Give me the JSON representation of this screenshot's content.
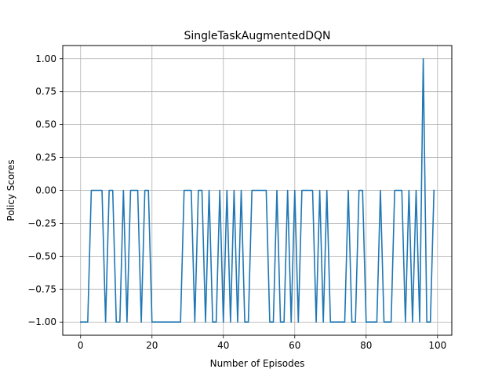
{
  "chart_data": {
    "type": "line",
    "title": "SingleTaskAugmentedDQN",
    "xlabel": "Number of Episodes",
    "ylabel": "Policy Scores",
    "xlim": [
      -5,
      104
    ],
    "ylim": [
      -1.1,
      1.1
    ],
    "grid": true,
    "x_ticks": [
      0,
      20,
      40,
      60,
      80,
      100
    ],
    "x_tick_labels": [
      "0",
      "20",
      "40",
      "60",
      "80",
      "100"
    ],
    "y_ticks": [
      -1.0,
      -0.75,
      -0.5,
      -0.25,
      0.0,
      0.25,
      0.5,
      0.75,
      1.0
    ],
    "y_tick_labels": [
      "−1.00",
      "−0.75",
      "−0.50",
      "−0.25",
      "0.00",
      "0.25",
      "0.50",
      "0.75",
      "1.00"
    ],
    "series_color": "#1f77b4",
    "series": [
      {
        "x": [
          0,
          1,
          2,
          3,
          4,
          5,
          6,
          7,
          8,
          9,
          10,
          11,
          12,
          13,
          14,
          15,
          16,
          17,
          18,
          19,
          20,
          21,
          22,
          23,
          24,
          25,
          26,
          27,
          28,
          29,
          30,
          31,
          32,
          33,
          34,
          35,
          36,
          37,
          38,
          39,
          40,
          41,
          42,
          43,
          44,
          45,
          46,
          47,
          48,
          49,
          50,
          51,
          52,
          53,
          54,
          55,
          56,
          57,
          58,
          59,
          60,
          61,
          62,
          63,
          64,
          65,
          66,
          67,
          68,
          69,
          70,
          71,
          72,
          73,
          74,
          75,
          76,
          77,
          78,
          79,
          80,
          81,
          82,
          83,
          84,
          85,
          86,
          87,
          88,
          89,
          90,
          91,
          92,
          93,
          94,
          95,
          96,
          97,
          98,
          99
        ],
        "values": [
          -1,
          -1,
          -1,
          0,
          0,
          0,
          0,
          -1,
          0,
          0,
          -1,
          -1,
          0,
          -1,
          0,
          0,
          0,
          -1,
          0,
          0,
          -1,
          -1,
          -1,
          -1,
          -1,
          -1,
          -1,
          -1,
          -1,
          0,
          0,
          0,
          -1,
          0,
          0,
          -1,
          0,
          -1,
          -1,
          0,
          -1,
          0,
          -1,
          0,
          -1,
          0,
          -1,
          -1,
          0,
          0,
          0,
          0,
          0,
          -1,
          -1,
          0,
          -1,
          -1,
          0,
          -1,
          0,
          -1,
          0,
          0,
          0,
          0,
          -1,
          0,
          -1,
          0,
          -1,
          -1,
          -1,
          -1,
          -1,
          0,
          -1,
          -1,
          0,
          0,
          -1,
          -1,
          -1,
          -1,
          0,
          -1,
          -1,
          -1,
          0,
          0,
          0,
          -1,
          0,
          -1,
          0,
          -1,
          1,
          -1,
          -1,
          0
        ]
      }
    ]
  }
}
